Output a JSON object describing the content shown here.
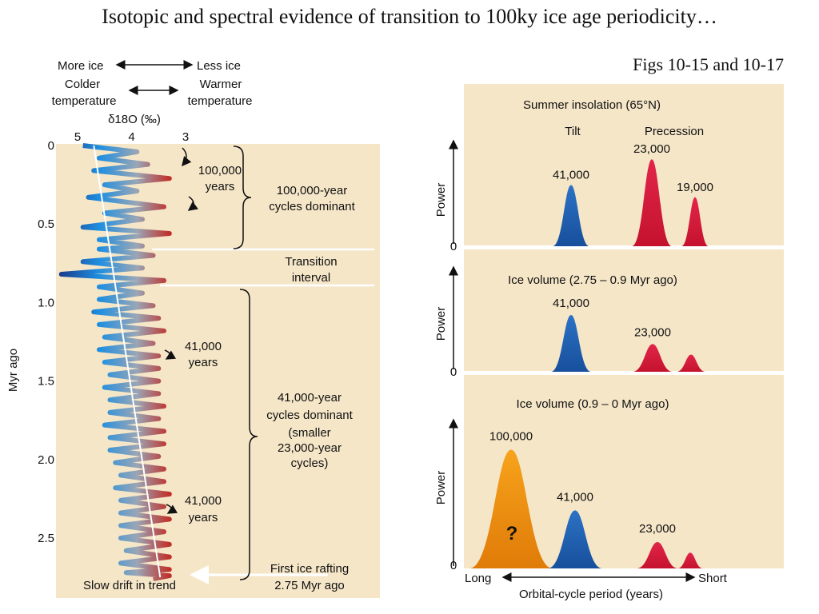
{
  "slide": {
    "title": "Isotopic and spectral evidence of transition to 100ky ice age periodicity…",
    "subtitle": "Figs 10-15 and 10-17"
  },
  "colors": {
    "panel_bg": "#f5e6c8",
    "cold_blue": "#1f8fe0",
    "deep_blue": "#1b3f8f",
    "warm_red": "#c0302a",
    "tilt_blue": "#1d5fb0",
    "precession_red": "#d2183a",
    "eccentricity_orange": "#ee8c10"
  },
  "left": {
    "more_ice": "More ice",
    "less_ice": "Less ice",
    "colder_1": "Colder",
    "colder_2": "temperature",
    "warmer_1": "Warmer",
    "warmer_2": "temperature",
    "axis_title": "δ18O (‰)",
    "ylabel": "Myr ago",
    "ann_100k_1": "100,000",
    "ann_100k_2": "years",
    "ann_100k_dom_1": "100,000-year",
    "ann_100k_dom_2": "cycles dominant",
    "transition_1": "Transition",
    "transition_2": "interval",
    "ann_41k_a_1": "41,000",
    "ann_41k_a_2": "years",
    "ann_41k_b_1": "41,000",
    "ann_41k_b_2": "years",
    "dom41_1": "41,000-year",
    "dom41_2": "cycles dominant",
    "dom41_3": "(smaller",
    "dom41_4": "23,000-year",
    "dom41_5": "cycles)",
    "first_ice_1": "First ice rafting",
    "first_ice_2": "2.75 Myr ago",
    "slow_drift": "Slow drift in trend"
  },
  "right": {
    "ylabel": "Power",
    "zero": "0",
    "panel1_title": "Summer insolation (65°N)",
    "tilt": "Tilt",
    "precession": "Precession",
    "panel2_title": "Ice volume (2.75 – 0.9 Myr ago)",
    "panel3_title": "Ice volume (0.9 – 0 Myr ago)",
    "question": "?",
    "long": "Long",
    "short": "Short",
    "xlabel": "Orbital-cycle period (years)"
  },
  "chart_data": [
    {
      "type": "line",
      "title": "δ18O (‰)",
      "ylabel": "Myr ago",
      "x_ticks": [
        "5",
        "4",
        "3"
      ],
      "xlim": [
        5.3,
        2.7
      ],
      "y_ticks": [
        "0",
        "0.5",
        "1.0",
        "1.5",
        "2.0",
        "2.5"
      ],
      "ylim": [
        0,
        2.8
      ],
      "trend_line": {
        "from": [
          4.7,
          0.0
        ],
        "to": [
          3.47,
          2.75
        ]
      },
      "transition_interval_myr": [
        0.65,
        0.9
      ],
      "series": [
        {
          "x": [
            4.9,
            3.9,
            4.6,
            3.7,
            4.7,
            3.3,
            4.5,
            3.9,
            4.8,
            3.4,
            4.5,
            3.8,
            4.9,
            3.3,
            4.6,
            3.8,
            4.6,
            3.6,
            4.9,
            3.8,
            5.3,
            3.4,
            4.6,
            3.8,
            4.6,
            3.6,
            4.7,
            3.5,
            4.6,
            3.4,
            4.5,
            3.6,
            4.6,
            3.5,
            4.5,
            3.5,
            4.4,
            3.5,
            4.5,
            3.5,
            4.4,
            3.4,
            4.4,
            3.5,
            4.5,
            3.4,
            4.4,
            3.4,
            4.4,
            3.5,
            4.3,
            3.4,
            4.2,
            3.4,
            4.3,
            3.3,
            4.2,
            3.4,
            4.2,
            3.3,
            4.2,
            3.4,
            4.2,
            3.3,
            4.1,
            3.3,
            4.2,
            3.3,
            4.1,
            3.3,
            3.6
          ],
          "y": [
            0.0,
            0.04,
            0.08,
            0.12,
            0.16,
            0.21,
            0.25,
            0.29,
            0.33,
            0.39,
            0.43,
            0.47,
            0.52,
            0.56,
            0.6,
            0.64,
            0.66,
            0.7,
            0.74,
            0.78,
            0.82,
            0.86,
            0.9,
            0.94,
            0.98,
            1.02,
            1.06,
            1.1,
            1.14,
            1.18,
            1.22,
            1.26,
            1.3,
            1.34,
            1.38,
            1.42,
            1.46,
            1.5,
            1.54,
            1.58,
            1.62,
            1.66,
            1.7,
            1.74,
            1.78,
            1.82,
            1.86,
            1.9,
            1.94,
            1.98,
            2.02,
            2.06,
            2.1,
            2.14,
            2.18,
            2.22,
            2.26,
            2.3,
            2.34,
            2.38,
            2.42,
            2.46,
            2.5,
            2.54,
            2.58,
            2.62,
            2.66,
            2.7,
            2.72,
            2.74,
            2.76
          ]
        }
      ]
    },
    {
      "type": "area",
      "title": "Summer insolation (65°N)",
      "ylabel": "Power",
      "series": [
        {
          "name": "Tilt",
          "peaks": [
            "41,000"
          ],
          "values": [
            0.45
          ]
        },
        {
          "name": "Precession",
          "peaks": [
            "23,000",
            "19,000"
          ],
          "values": [
            0.64,
            0.36
          ]
        }
      ]
    },
    {
      "type": "area",
      "title": "Ice volume (2.75 – 0.9 Myr ago)",
      "ylabel": "Power",
      "categories": [
        "41,000",
        "23,000",
        ""
      ],
      "values": [
        0.43,
        0.21,
        0.13
      ]
    },
    {
      "type": "area",
      "title": "Ice volume (0.9 – 0 Myr ago)",
      "ylabel": "Power",
      "xlabel": "Orbital-cycle period (years)",
      "x_ends": [
        "Long",
        "Short"
      ],
      "categories": [
        "100,000",
        "41,000",
        "23,000",
        ""
      ],
      "values": [
        0.9,
        0.44,
        0.2,
        0.12
      ]
    }
  ]
}
